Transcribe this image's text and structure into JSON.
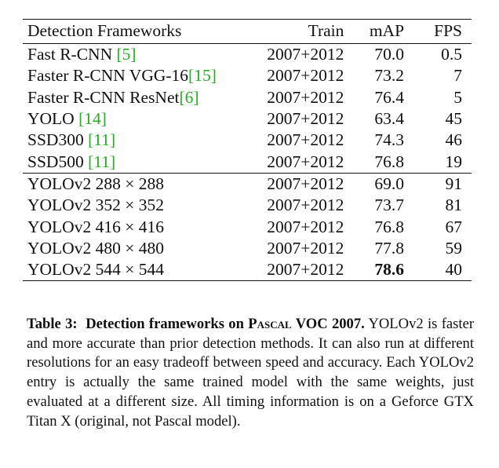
{
  "table": {
    "headers": {
      "framework": "Detection Frameworks",
      "train": "Train",
      "map": "mAP",
      "fps": "FPS"
    },
    "prior_rows": [
      {
        "name": "Fast R-CNN ",
        "cite": "[5]",
        "train": "2007+2012",
        "map": "70.0",
        "fps": "0.5"
      },
      {
        "name": "Faster R-CNN VGG-16",
        "cite": "[15]",
        "train": "2007+2012",
        "map": "73.2",
        "fps": "7"
      },
      {
        "name": "Faster R-CNN ResNet",
        "cite": "[6]",
        "train": "2007+2012",
        "map": "76.4",
        "fps": "5"
      },
      {
        "name": "YOLO ",
        "cite": "[14]",
        "train": "2007+2012",
        "map": "63.4",
        "fps": "45"
      },
      {
        "name": "SSD300 ",
        "cite": "[11]",
        "train": "2007+2012",
        "map": "74.3",
        "fps": "46"
      },
      {
        "name": "SSD500 ",
        "cite": "[11]",
        "train": "2007+2012",
        "map": "76.8",
        "fps": "19"
      }
    ],
    "yolo_rows": [
      {
        "name": "YOLOv2 288 × 288",
        "train": "2007+2012",
        "map": "69.0",
        "fps": "91"
      },
      {
        "name": "YOLOv2 352 × 352",
        "train": "2007+2012",
        "map": "73.7",
        "fps": "81"
      },
      {
        "name": "YOLOv2 416 × 416",
        "train": "2007+2012",
        "map": "76.8",
        "fps": "67"
      },
      {
        "name": "YOLOv2 480 × 480",
        "train": "2007+2012",
        "map": "77.8",
        "fps": "59"
      },
      {
        "name": "YOLOv2 544 × 544",
        "train": "2007+2012",
        "map": "78.6",
        "fps": "40"
      }
    ]
  },
  "caption": {
    "label": "Table 3:",
    "title_pre": "Detection frameworks on ",
    "title_smallcaps": "Pascal",
    "title_post": " VOC 2007.",
    "body": "YOLOv2 is faster and more accurate than prior detection methods. It can also run at different resolutions for an easy tradeoff between speed and accuracy. Each YOLOv2 entry is actually the same trained model with the same weights, just evaluated at a different size. All timing information is on a Geforce GTX Titan X (original, not Pascal model)."
  },
  "colors": {
    "citation": "#22b022",
    "text": "#111111"
  }
}
